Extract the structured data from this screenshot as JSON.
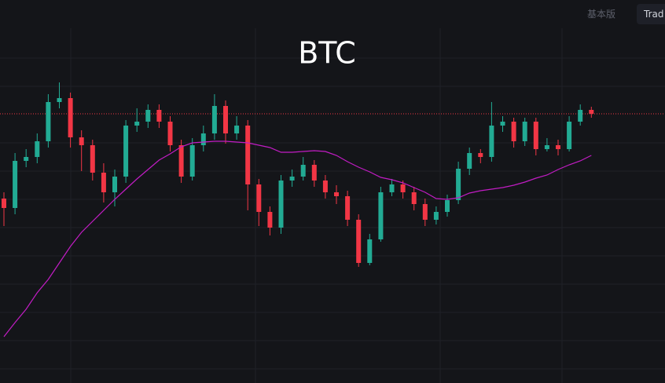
{
  "header": {
    "basic": "基本版",
    "trade": "Trad"
  },
  "chart_data": {
    "type": "candlestick",
    "title": "BTC",
    "ylim": [
      0,
      450
    ],
    "colors": {
      "up": "#22ab94",
      "down": "#f23645",
      "ma": "#c21cc4",
      "price_line": "#f23645"
    },
    "open": [
      235,
      223,
      283,
      288,
      308,
      358,
      363,
      313,
      303,
      268,
      243,
      263,
      328,
      333,
      348,
      333,
      303,
      263,
      303,
      318,
      353,
      318,
      328,
      253,
      218,
      198,
      258,
      263,
      278,
      258,
      243,
      238,
      208,
      153,
      183,
      243,
      253,
      243,
      228,
      208,
      218,
      233,
      273,
      293,
      288,
      328,
      333,
      308,
      333,
      298,
      303,
      298,
      333,
      348
    ],
    "high": [
      243,
      293,
      298,
      318,
      368,
      383,
      370,
      322,
      310,
      280,
      272,
      335,
      350,
      355,
      355,
      340,
      310,
      312,
      328,
      368,
      360,
      340,
      335,
      260,
      225,
      265,
      272,
      288,
      284,
      265,
      252,
      245,
      215,
      190,
      250,
      260,
      258,
      250,
      235,
      225,
      240,
      282,
      300,
      298,
      358,
      340,
      338,
      338,
      338,
      312,
      310,
      340,
      355,
      352
    ],
    "low": [
      200,
      215,
      275,
      280,
      300,
      350,
      300,
      270,
      258,
      230,
      225,
      255,
      320,
      325,
      325,
      295,
      255,
      258,
      295,
      310,
      305,
      310,
      220,
      200,
      188,
      190,
      250,
      258,
      250,
      235,
      228,
      200,
      148,
      150,
      180,
      238,
      235,
      220,
      200,
      202,
      212,
      228,
      265,
      280,
      282,
      320,
      300,
      302,
      290,
      295,
      290,
      295,
      328,
      338
    ],
    "close": [
      223,
      283,
      288,
      308,
      358,
      363,
      313,
      303,
      268,
      243,
      263,
      328,
      333,
      348,
      333,
      303,
      263,
      303,
      318,
      353,
      318,
      328,
      253,
      218,
      198,
      258,
      263,
      278,
      258,
      243,
      238,
      208,
      153,
      183,
      243,
      253,
      243,
      228,
      208,
      218,
      233,
      273,
      293,
      288,
      328,
      333,
      308,
      333,
      298,
      303,
      298,
      333,
      348,
      343
    ],
    "ma": [
      59,
      77,
      94,
      115,
      132,
      153,
      174,
      192,
      206,
      220,
      234,
      247,
      260,
      272,
      284,
      292,
      301,
      306,
      307,
      308,
      308,
      307,
      306,
      303,
      300,
      294,
      294,
      295,
      296,
      295,
      290,
      282,
      275,
      269,
      262,
      259,
      255,
      249,
      243,
      235,
      234,
      236,
      242,
      245,
      247,
      249,
      252,
      256,
      261,
      265,
      272,
      278,
      283,
      290
    ]
  }
}
